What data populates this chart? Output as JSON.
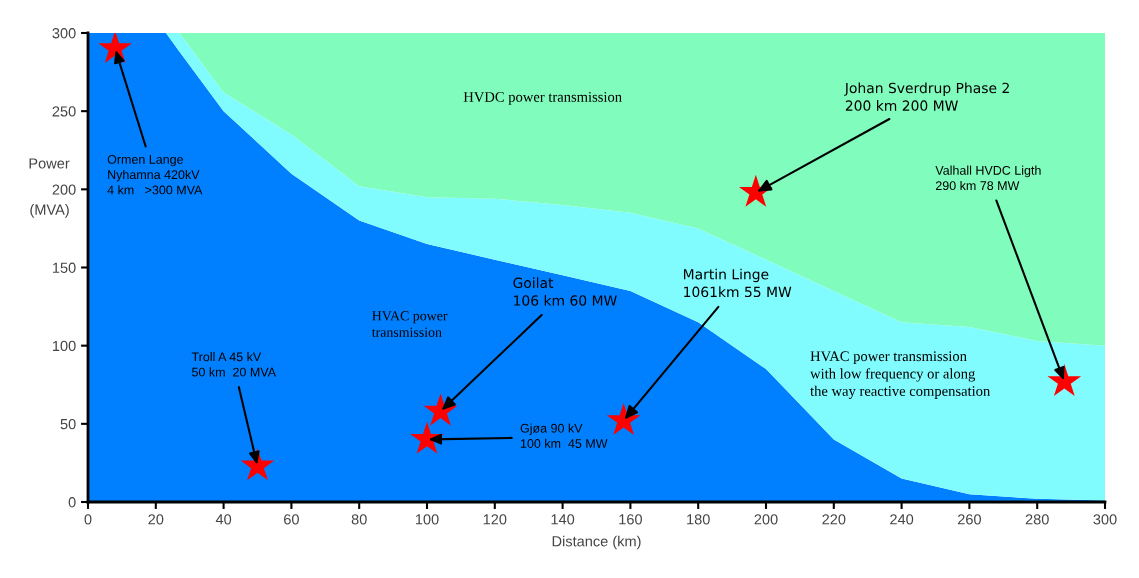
{
  "chart_data": {
    "type": "area",
    "xlabel": "Distance (km)",
    "ylabel": "Power\n\n(MVA)",
    "xlim": [
      0,
      300
    ],
    "ylim": [
      0,
      300
    ],
    "xticks": [
      0,
      20,
      40,
      60,
      80,
      100,
      120,
      140,
      160,
      180,
      200,
      220,
      240,
      260,
      280,
      300
    ],
    "yticks": [
      0,
      50,
      100,
      150,
      200,
      250,
      300
    ],
    "stacked": true,
    "x": [
      0,
      23,
      27,
      40,
      60,
      80,
      100,
      120,
      140,
      160,
      180,
      200,
      220,
      240,
      260,
      280,
      300
    ],
    "series": [
      {
        "color": "#0080ff",
        "values": [
          300,
          300,
          288,
          250,
          210,
          180,
          165,
          155,
          145,
          135,
          115,
          85,
          40,
          15,
          5,
          2,
          1
        ]
      },
      {
        "color": "#80fcff",
        "values": [
          0,
          0,
          12,
          12,
          25,
          22,
          30,
          39,
          45,
          50,
          60,
          70,
          95,
          100,
          107,
          101,
          99
        ]
      },
      {
        "color": "#80fcbc",
        "values": [
          0,
          0,
          0,
          38,
          65,
          98,
          105,
          106,
          110,
          115,
          125,
          145,
          165,
          185,
          188,
          197,
          200
        ]
      },
      {
        "type": "scatter",
        "color": "#ff0000",
        "marker": "star",
        "x": [
          8,
          50,
          100,
          104,
          158,
          197,
          288
        ],
        "values": [
          290,
          23,
          40,
          58,
          52,
          198,
          77
        ]
      }
    ],
    "annotations": [
      "HVDC power transmission",
      "HVAC power\ntransmission",
      "HVAC power transmission\nwith low frequency or along\nthe way reactive compensation",
      {
        "text": "Ormen Lange\nNyhamna 420kV\n4 km   >300 MVA",
        "x": 8,
        "y": 290
      },
      {
        "text": "Troll A 45 kV\n50 km  20 MVA",
        "x": 50,
        "y": 23
      },
      {
        "text": "Goilat\n106 km 60 MW",
        "x": 104,
        "y": 58
      },
      {
        "text": "Gjøa 90 kV\n100 km  45 MW",
        "x": 100,
        "y": 40
      },
      {
        "text": "Martin Linge\n1061km 55 MW",
        "x": 158,
        "y": 52
      },
      {
        "text": "Johan Sverdrup Phase 2\n200 km 200 MW",
        "x": 197,
        "y": 198
      },
      {
        "text": "Valhall HVDC Ligth\n290 km 78 MW",
        "x": 288,
        "y": 77
      }
    ]
  }
}
